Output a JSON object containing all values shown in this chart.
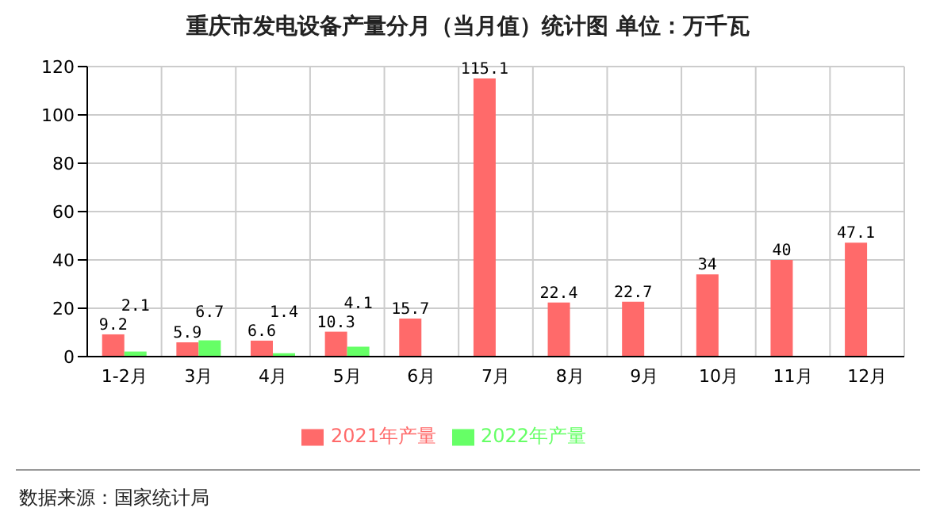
{
  "chart_data": {
    "type": "bar",
    "title": "重庆市发电设备产量分月（当月值）统计图 单位：万千瓦",
    "categories": [
      "1-2月",
      "3月",
      "4月",
      "5月",
      "6月",
      "7月",
      "8月",
      "9月",
      "10月",
      "11月",
      "12月"
    ],
    "series": [
      {
        "name": "2021年产量",
        "color": "#ff6a6a",
        "values": [
          9.2,
          5.9,
          6.6,
          10.3,
          15.7,
          115.1,
          22.4,
          22.7,
          34,
          40,
          47.1
        ]
      },
      {
        "name": "2022年产量",
        "color": "#66ff66",
        "values": [
          2.1,
          6.7,
          1.4,
          4.1,
          null,
          null,
          null,
          null,
          null,
          null,
          null
        ]
      }
    ],
    "ylim": [
      0,
      120
    ],
    "yticks": [
      0,
      20,
      40,
      60,
      80,
      100,
      120
    ],
    "grid": true,
    "legend": "bottom",
    "data_labels": true,
    "annotations": [
      "数据来源：国家统计局"
    ]
  }
}
